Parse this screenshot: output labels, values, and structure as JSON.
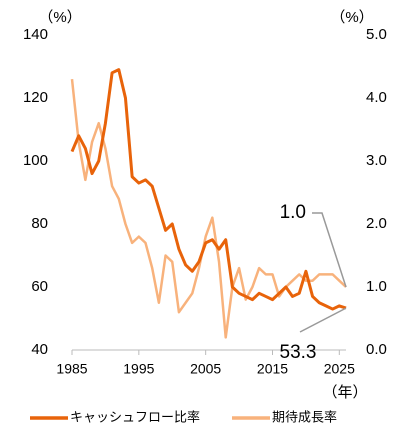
{
  "chart_data": {
    "type": "line",
    "y_unit_label": "（%）",
    "y2_unit_label": "（%）",
    "x_label": "（年）",
    "x": [
      1985,
      1986,
      1987,
      1988,
      1989,
      1990,
      1991,
      1992,
      1993,
      1994,
      1995,
      1996,
      1997,
      1998,
      1999,
      2000,
      2001,
      2002,
      2003,
      2004,
      2005,
      2006,
      2007,
      2008,
      2009,
      2010,
      2011,
      2012,
      2013,
      2014,
      2015,
      2016,
      2017,
      2018,
      2019,
      2020,
      2021,
      2022,
      2023,
      2024,
      2025,
      2026
    ],
    "xlim": [
      1985,
      2026
    ],
    "xticks": [
      1985,
      1995,
      2005,
      2015,
      2025
    ],
    "ylim": [
      40,
      140
    ],
    "yticks": [
      40,
      60,
      80,
      100,
      120,
      140
    ],
    "y2lim": [
      0,
      5
    ],
    "y2ticks": [
      {
        "value": 0,
        "label": "0.0"
      },
      {
        "value": 1,
        "label": "1.0"
      },
      {
        "value": 2,
        "label": "2.0"
      },
      {
        "value": 3,
        "label": "3.0"
      },
      {
        "value": 4,
        "label": "4.0"
      },
      {
        "value": 5,
        "label": "5.0"
      }
    ],
    "series": [
      {
        "name": "キャッシュフロー比率",
        "color": "#e8630a",
        "values": [
          103,
          108,
          104,
          96,
          100,
          112,
          128,
          129,
          120,
          95,
          93,
          94,
          92,
          85,
          78,
          80,
          72,
          67,
          65,
          68,
          74,
          75,
          72,
          75,
          60,
          58,
          57,
          56,
          58,
          57,
          56,
          58,
          60,
          57,
          58,
          65,
          57,
          55,
          54,
          53,
          54,
          53.3
        ]
      },
      {
        "name": "期待成長率",
        "color": "#f8b27c",
        "axis": "y2",
        "values": [
          4.3,
          3.3,
          2.7,
          3.3,
          3.6,
          3.2,
          2.6,
          2.4,
          2.0,
          1.7,
          1.8,
          1.7,
          1.3,
          0.75,
          1.5,
          1.4,
          0.6,
          0.75,
          0.9,
          1.3,
          1.8,
          2.1,
          1.4,
          0.2,
          1.0,
          1.3,
          0.8,
          1.0,
          1.3,
          1.2,
          1.2,
          0.85,
          1.0,
          1.1,
          1.2,
          1.1,
          1.1,
          1.2,
          1.2,
          1.2,
          1.1,
          1.0
        ]
      }
    ],
    "annotations": [
      "1.0",
      "53.3"
    ]
  }
}
